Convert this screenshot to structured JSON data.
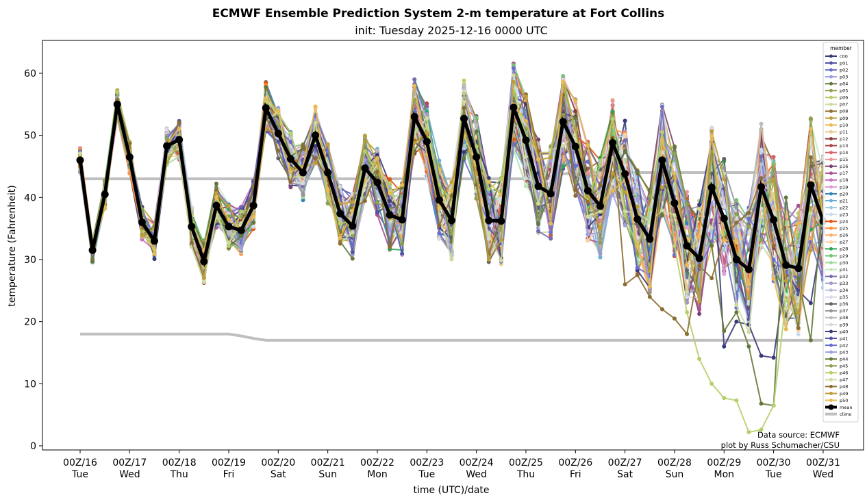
{
  "chart_data": {
    "type": "line",
    "title": "ECMWF Ensemble Prediction System 2-m temperature at Fort Collins",
    "subtitle": "init: Tuesday 2025-12-16 0000 UTC",
    "xlabel": "time (UTC)/date",
    "ylabel": "temperature (Fahrenheit)",
    "ylim": [
      -0.7,
      65.3
    ],
    "yticks": [
      0,
      10,
      20,
      30,
      40,
      50,
      60
    ],
    "grid": false,
    "x_step_hours": 6,
    "x_start": "2025-12-16 00Z",
    "xticks": [
      {
        "top": "00Z/16",
        "bottom": "Tue"
      },
      {
        "top": "00Z/17",
        "bottom": "Wed"
      },
      {
        "top": "00Z/18",
        "bottom": "Thu"
      },
      {
        "top": "00Z/19",
        "bottom": "Fri"
      },
      {
        "top": "00Z/20",
        "bottom": "Sat"
      },
      {
        "top": "00Z/21",
        "bottom": "Sun"
      },
      {
        "top": "00Z/22",
        "bottom": "Mon"
      },
      {
        "top": "00Z/23",
        "bottom": "Tue"
      },
      {
        "top": "00Z/24",
        "bottom": "Wed"
      },
      {
        "top": "00Z/25",
        "bottom": "Thu"
      },
      {
        "top": "00Z/26",
        "bottom": "Fri"
      },
      {
        "top": "00Z/27",
        "bottom": "Sat"
      },
      {
        "top": "00Z/28",
        "bottom": "Sun"
      },
      {
        "top": "00Z/29",
        "bottom": "Mon"
      },
      {
        "top": "00Z/30",
        "bottom": "Tue"
      },
      {
        "top": "00Z/31",
        "bottom": "Wed"
      }
    ],
    "legend": {
      "title": "member",
      "placement": "top-right"
    },
    "mean": {
      "name": "mean",
      "color": "#000000",
      "values": [
        46,
        31.5,
        40.5,
        55,
        46.5,
        36,
        33,
        48.3,
        49.3,
        35.3,
        29.7,
        38.7,
        35.3,
        34.7,
        38.7,
        54.4,
        50.3,
        46.2,
        44,
        50,
        44,
        37.4,
        35.4,
        44.7,
        42.4,
        37.2,
        36.4,
        53,
        49,
        39.6,
        36.3,
        52.7,
        46.5,
        36.3,
        36.2,
        54.5,
        49.2,
        41.8,
        40.6,
        52.2,
        48.2,
        41.1,
        38.6,
        48.8,
        43.8,
        36.5,
        33.3,
        46,
        39.1,
        32.2,
        30.2,
        41.6,
        36.6,
        30,
        28.4,
        41.7,
        36.4,
        29.1,
        28.6,
        42,
        36.2
      ]
    },
    "climo": [
      {
        "name": "climo",
        "color": "#bfbfbf",
        "values": [
          43,
          43,
          43,
          43,
          43,
          43,
          43,
          43,
          43,
          43,
          43,
          43,
          43,
          43,
          43,
          43,
          43,
          43,
          43,
          43,
          43,
          43,
          43,
          43,
          43,
          43,
          43,
          43,
          43,
          43,
          43,
          43,
          43,
          43,
          43,
          43,
          43,
          43.2,
          43.5,
          43.8,
          44,
          44,
          44,
          44,
          44,
          44,
          44,
          44,
          44,
          44,
          44,
          44,
          44,
          44,
          44,
          44,
          44,
          44,
          44,
          44,
          44
        ]
      },
      {
        "name": "climo",
        "color": "#bfbfbf",
        "values": [
          18,
          18,
          18,
          18,
          18,
          18,
          18,
          18,
          18,
          18,
          18,
          18,
          18,
          17.7,
          17.3,
          17,
          17,
          17,
          17,
          17,
          17,
          17,
          17,
          17,
          17,
          17,
          17,
          17,
          17,
          17,
          17,
          17,
          17,
          17,
          17,
          17,
          17,
          17,
          17,
          17,
          17,
          17,
          17,
          17,
          17,
          17,
          17,
          17,
          17,
          17,
          17,
          17,
          17,
          17,
          17,
          17,
          17,
          17,
          17,
          17,
          17
        ]
      }
    ],
    "members": [
      {
        "name": "c00",
        "color": "#393b79"
      },
      {
        "name": "p01",
        "color": "#5254a3"
      },
      {
        "name": "p02",
        "color": "#6b6ecf"
      },
      {
        "name": "p03",
        "color": "#9c9ede"
      },
      {
        "name": "p04",
        "color": "#637939"
      },
      {
        "name": "p05",
        "color": "#8ca252"
      },
      {
        "name": "p06",
        "color": "#b5cf6b"
      },
      {
        "name": "p07",
        "color": "#cedb9c"
      },
      {
        "name": "p08",
        "color": "#8c6d31"
      },
      {
        "name": "p09",
        "color": "#bd9e39"
      },
      {
        "name": "p10",
        "color": "#e7ba52"
      },
      {
        "name": "p11",
        "color": "#e7cb94"
      },
      {
        "name": "p12",
        "color": "#843c39"
      },
      {
        "name": "p13",
        "color": "#ad494a"
      },
      {
        "name": "p14",
        "color": "#d6616b"
      },
      {
        "name": "p15",
        "color": "#e7969c"
      },
      {
        "name": "p16",
        "color": "#7b4173"
      },
      {
        "name": "p17",
        "color": "#a55194"
      },
      {
        "name": "p18",
        "color": "#ce6dbd"
      },
      {
        "name": "p19",
        "color": "#de9ed6"
      },
      {
        "name": "p20",
        "color": "#3182bd"
      },
      {
        "name": "p21",
        "color": "#6baed6"
      },
      {
        "name": "p22",
        "color": "#9ecae1"
      },
      {
        "name": "p23",
        "color": "#c6dbef"
      },
      {
        "name": "p24",
        "color": "#e6550d"
      },
      {
        "name": "p25",
        "color": "#fd8d3c"
      },
      {
        "name": "p26",
        "color": "#fdae6b"
      },
      {
        "name": "p27",
        "color": "#fdd0a2"
      },
      {
        "name": "p28",
        "color": "#31a354"
      },
      {
        "name": "p29",
        "color": "#74c476"
      },
      {
        "name": "p30",
        "color": "#a1d99b"
      },
      {
        "name": "p31",
        "color": "#c7e9c0"
      },
      {
        "name": "p32",
        "color": "#756bb1"
      },
      {
        "name": "p33",
        "color": "#9e9ac8"
      },
      {
        "name": "p34",
        "color": "#bcbddc"
      },
      {
        "name": "p35",
        "color": "#dadaeb"
      },
      {
        "name": "p36",
        "color": "#636363"
      },
      {
        "name": "p37",
        "color": "#969696"
      },
      {
        "name": "p38",
        "color": "#bdbdbd"
      },
      {
        "name": "p39",
        "color": "#d9d9d9"
      },
      {
        "name": "p40",
        "color": "#393b79",
        "tail": {
          "from_index": 52,
          "values": [
            16,
            20,
            19.5,
            14.5,
            14.2,
            28,
            25,
            23
          ]
        }
      },
      {
        "name": "p41",
        "color": "#5254a3"
      },
      {
        "name": "p42",
        "color": "#6b6ecf"
      },
      {
        "name": "p43",
        "color": "#9c9ede"
      },
      {
        "name": "p44",
        "color": "#637939",
        "tail": {
          "from_index": 52,
          "values": [
            18.5,
            21.5,
            16,
            6.8,
            6.5,
            40,
            27,
            17
          ]
        }
      },
      {
        "name": "p45",
        "color": "#8ca252"
      },
      {
        "name": "p46",
        "color": "#b5cf6b",
        "tail": {
          "from_index": 49,
          "values": [
            21.5,
            14,
            10,
            7.7,
            7.3,
            2.2,
            2.6,
            6.5,
            23.5,
            20
          ]
        }
      },
      {
        "name": "p47",
        "color": "#cedb9c"
      },
      {
        "name": "p48",
        "color": "#8c6d31",
        "tail": {
          "from_index": 44,
          "values": [
            26,
            27.5,
            24,
            22,
            20.5,
            18,
            29,
            27
          ]
        }
      },
      {
        "name": "p49",
        "color": "#bd9e39"
      },
      {
        "name": "p50",
        "color": "#e7ba52"
      }
    ],
    "annotations": [
      "Data source: ECMWF",
      "plot by Russ Schumacher/CSU"
    ]
  }
}
